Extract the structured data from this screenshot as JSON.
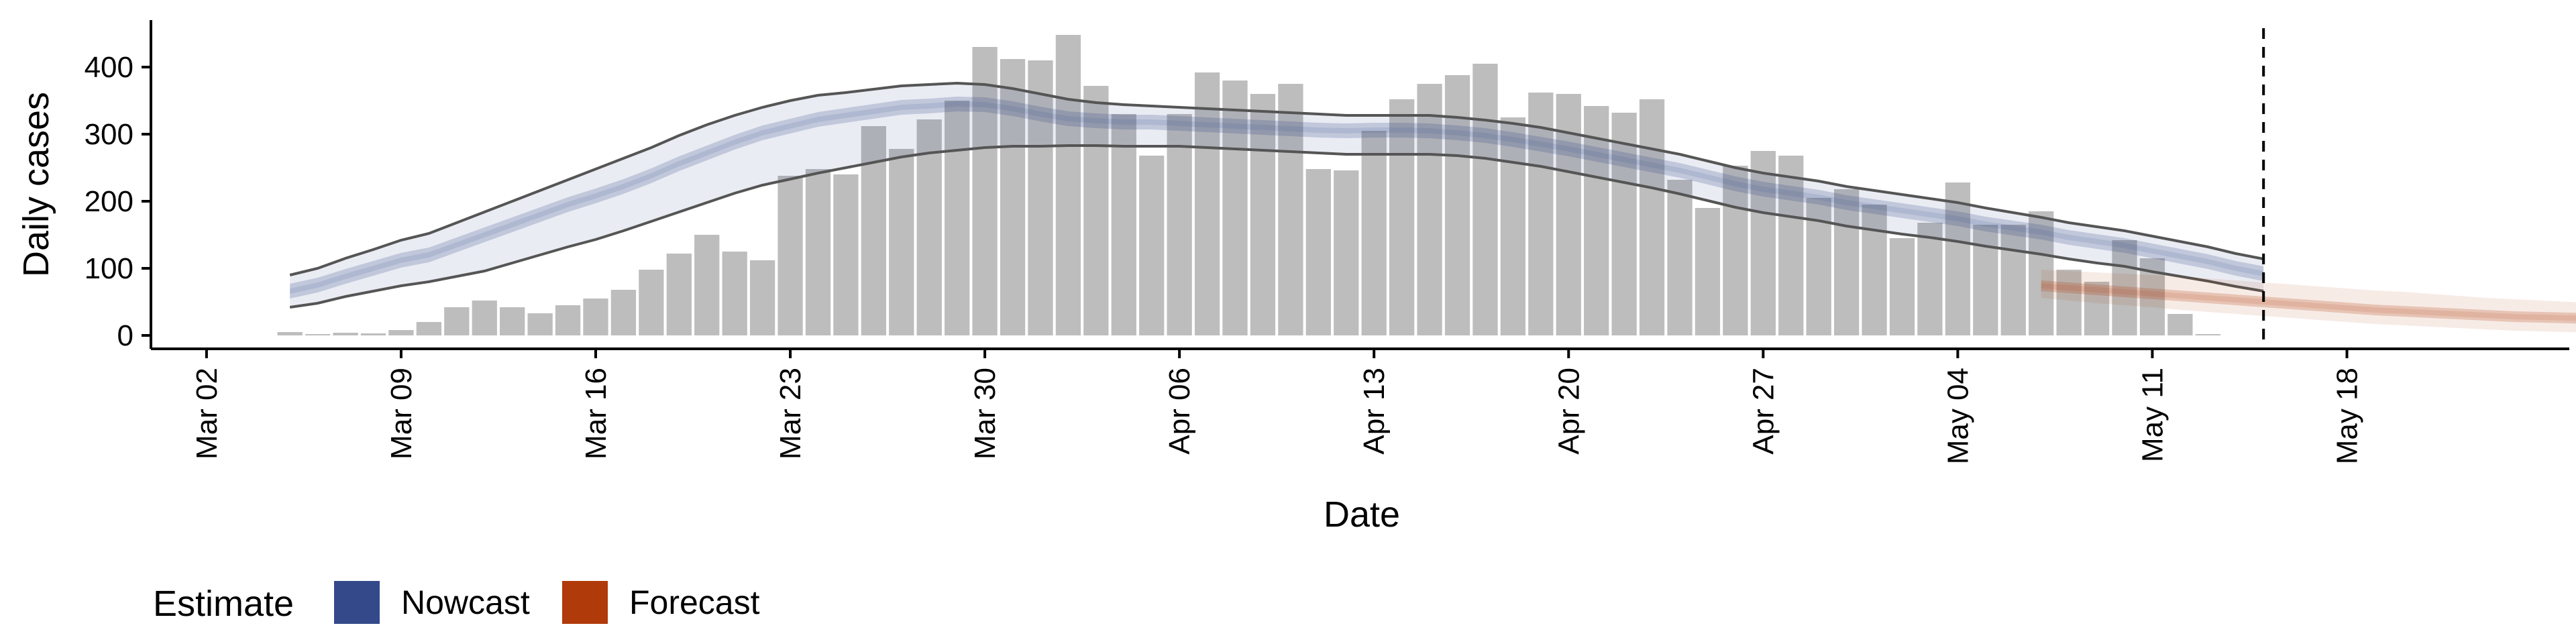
{
  "chart_data": {
    "type": "bar",
    "xlabel": "Date",
    "ylabel": "Daily cases",
    "ylim": [
      -20,
      470
    ],
    "xlim": [
      "2020-02-29",
      "2020-05-26"
    ],
    "yticks": [
      0,
      100,
      200,
      300,
      400
    ],
    "xticks": [
      {
        "date": "2020-03-02",
        "label": "Mar 02"
      },
      {
        "date": "2020-03-09",
        "label": "Mar 09"
      },
      {
        "date": "2020-03-16",
        "label": "Mar 16"
      },
      {
        "date": "2020-03-23",
        "label": "Mar 23"
      },
      {
        "date": "2020-03-30",
        "label": "Mar 30"
      },
      {
        "date": "2020-04-06",
        "label": "Apr 06"
      },
      {
        "date": "2020-04-13",
        "label": "Apr 13"
      },
      {
        "date": "2020-04-20",
        "label": "Apr 20"
      },
      {
        "date": "2020-04-27",
        "label": "Apr 27"
      },
      {
        "date": "2020-05-04",
        "label": "May 04"
      },
      {
        "date": "2020-05-11",
        "label": "May 11"
      },
      {
        "date": "2020-05-18",
        "label": "May 18"
      }
    ],
    "grid": false,
    "bar_color": "#bdbdbd",
    "observed": {
      "start_date": "2020-03-05",
      "values": [
        5,
        2,
        4,
        3,
        8,
        20,
        42,
        52,
        42,
        33,
        45,
        55,
        68,
        98,
        122,
        150,
        125,
        112,
        238,
        248,
        240,
        312,
        278,
        322,
        350,
        430,
        412,
        410,
        448,
        372,
        330,
        268,
        330,
        392,
        380,
        360,
        375,
        248,
        246,
        305,
        352,
        375,
        388,
        405,
        325,
        362,
        360,
        342,
        332,
        352,
        232,
        190,
        253,
        275,
        268,
        205,
        218,
        195,
        145,
        168,
        228,
        165,
        165,
        185,
        98,
        80,
        142,
        115,
        32,
        2
      ]
    },
    "vline": {
      "date": "2020-05-15",
      "style": "dashed"
    },
    "legend": {
      "title": "Estimate",
      "position": "bottom",
      "entries": [
        {
          "name": "Nowcast",
          "color": "#33498a"
        },
        {
          "name": "Forecast",
          "color": "#b03a0a"
        }
      ]
    },
    "series": [
      {
        "name": "Nowcast",
        "color": "#33498a",
        "start_date": "2020-03-05",
        "median": [
          66,
          75,
          88,
          100,
          112,
          120,
          135,
          150,
          165,
          180,
          195,
          208,
          222,
          238,
          256,
          272,
          288,
          302,
          312,
          322,
          328,
          334,
          340,
          342,
          345,
          344,
          338,
          330,
          323,
          320,
          318,
          318,
          316,
          314,
          312,
          310,
          308,
          306,
          305,
          306,
          306,
          305,
          302,
          298,
          292,
          285,
          278,
          270,
          262,
          254,
          246,
          236,
          226,
          218,
          212,
          206,
          198,
          192,
          186,
          180,
          174,
          166,
          160,
          154,
          146,
          140,
          134,
          126,
          118,
          110,
          100,
          92
        ],
        "inner_lo": [
          55,
          64,
          77,
          89,
          101,
          109,
          124,
          139,
          154,
          169,
          184,
          197,
          211,
          227,
          245,
          261,
          277,
          291,
          301,
          311,
          317,
          323,
          329,
          331,
          334,
          333,
          327,
          319,
          312,
          309,
          307,
          307,
          305,
          303,
          301,
          299,
          297,
          295,
          294,
          295,
          295,
          294,
          291,
          287,
          281,
          274,
          267,
          259,
          251,
          243,
          235,
          225,
          215,
          207,
          201,
          195,
          187,
          181,
          175,
          169,
          163,
          155,
          149,
          143,
          135,
          129,
          123,
          115,
          107,
          99,
          89,
          81
        ],
        "inner_hi": [
          77,
          86,
          99,
          111,
          123,
          131,
          146,
          161,
          176,
          191,
          206,
          219,
          233,
          249,
          267,
          283,
          299,
          313,
          323,
          333,
          339,
          345,
          351,
          353,
          356,
          355,
          349,
          341,
          334,
          331,
          329,
          329,
          327,
          325,
          323,
          321,
          319,
          317,
          316,
          317,
          317,
          316,
          313,
          309,
          303,
          296,
          289,
          281,
          273,
          265,
          257,
          247,
          237,
          229,
          223,
          217,
          209,
          203,
          197,
          191,
          185,
          177,
          171,
          165,
          157,
          151,
          145,
          137,
          129,
          121,
          111,
          103
        ],
        "lower": [
          42,
          48,
          58,
          66,
          74,
          80,
          88,
          96,
          108,
          120,
          132,
          143,
          156,
          170,
          184,
          198,
          212,
          224,
          233,
          242,
          250,
          258,
          266,
          272,
          276,
          280,
          282,
          282,
          283,
          283,
          282,
          282,
          282,
          280,
          278,
          276,
          274,
          272,
          270,
          270,
          270,
          270,
          268,
          264,
          258,
          252,
          244,
          236,
          228,
          220,
          211,
          201,
          191,
          183,
          177,
          171,
          163,
          157,
          151,
          146,
          140,
          133,
          127,
          121,
          114,
          108,
          103,
          95,
          88,
          81,
          73,
          66
        ],
        "upper": [
          90,
          100,
          115,
          128,
          142,
          152,
          168,
          184,
          200,
          216,
          232,
          248,
          264,
          280,
          298,
          314,
          328,
          340,
          350,
          358,
          362,
          367,
          372,
          374,
          376,
          374,
          368,
          360,
          352,
          347,
          344,
          342,
          340,
          338,
          336,
          334,
          332,
          330,
          328,
          328,
          328,
          328,
          325,
          321,
          316,
          310,
          302,
          294,
          286,
          278,
          270,
          260,
          250,
          242,
          236,
          230,
          222,
          216,
          210,
          204,
          198,
          190,
          183,
          176,
          168,
          162,
          156,
          148,
          140,
          132,
          122,
          114
        ]
      },
      {
        "name": "Forecast",
        "color": "#b03a0a",
        "start_date": "2020-05-07",
        "median": [
          74,
          71,
          68,
          65,
          62,
          59,
          56,
          53,
          50,
          47,
          44,
          41,
          38,
          36,
          34,
          32,
          30,
          28,
          27,
          26,
          25
        ],
        "inner_lo": [
          66,
          63,
          60,
          57,
          54,
          51,
          48,
          45,
          42,
          39,
          36,
          33,
          30,
          28,
          26,
          24,
          22,
          20,
          19,
          18,
          17
        ],
        "inner_hi": [
          82,
          79,
          76,
          73,
          70,
          67,
          64,
          61,
          58,
          55,
          52,
          49,
          46,
          44,
          42,
          40,
          38,
          36,
          35,
          34,
          33
        ],
        "lower": [
          56,
          52,
          48,
          45,
          42,
          38,
          35,
          32,
          29,
          26,
          23,
          20,
          17,
          15,
          13,
          11,
          9,
          7,
          6,
          5,
          4
        ],
        "upper": [
          98,
          96,
          94,
          92,
          90,
          88,
          85,
          82,
          79,
          76,
          73,
          70,
          67,
          65,
          62,
          59,
          56,
          54,
          52,
          50,
          48
        ]
      }
    ]
  }
}
